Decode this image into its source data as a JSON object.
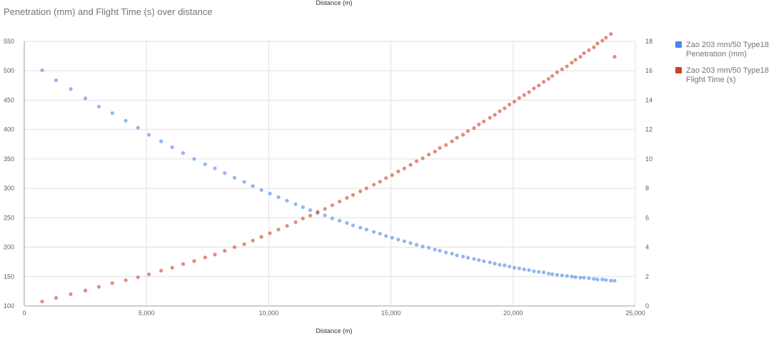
{
  "chart_data": {
    "type": "scatter",
    "title": "Penetration (mm) and Flight Time (s) over distance",
    "xlabel": "Distance (m)",
    "xlabel_top": "Distance (m)",
    "xlim": [
      0,
      25000
    ],
    "x_ticks": [
      0,
      5000,
      10000,
      15000,
      20000,
      25000
    ],
    "x_tick_labels": [
      "0",
      "5,000",
      "10,000",
      "15,000",
      "20,000",
      "25,000"
    ],
    "ylim_left": [
      100,
      550
    ],
    "y_ticks_left": [
      100,
      150,
      200,
      250,
      300,
      350,
      400,
      450,
      500,
      550
    ],
    "ylim_right": [
      0,
      18
    ],
    "y_ticks_right": [
      0,
      2,
      4,
      6,
      8,
      10,
      12,
      14,
      16,
      18
    ],
    "grid": true,
    "legend_position": "right",
    "x": [
      730,
      1300,
      1900,
      2500,
      3050,
      3600,
      4150,
      4650,
      5100,
      5600,
      6050,
      6500,
      6950,
      7400,
      7800,
      8200,
      8600,
      9000,
      9350,
      9700,
      10050,
      10400,
      10750,
      11100,
      11400,
      11700,
      12000,
      12300,
      12600,
      12900,
      13200,
      13450,
      13750,
      14000,
      14300,
      14550,
      14800,
      15050,
      15300,
      15550,
      15800,
      16050,
      16300,
      16550,
      16800,
      17000,
      17250,
      17500,
      17700,
      17950,
      18150,
      18400,
      18600,
      18800,
      19050,
      19250,
      19450,
      19650,
      19850,
      20050,
      20250,
      20450,
      20650,
      20850,
      21050,
      21250,
      21450,
      21600,
      21800,
      22000,
      22200,
      22400,
      22550,
      22750,
      22900,
      23100,
      23300,
      23450,
      23650,
      23800,
      24000,
      24150
    ],
    "series": [
      {
        "name": "Zao 203 mm/50 Type18 Penetration (mm)",
        "axis": "left",
        "color": "#4a86e8",
        "values": [
          501,
          484,
          469,
          453,
          439,
          428,
          415,
          403,
          391,
          380,
          370,
          360,
          350,
          341,
          334,
          326,
          318,
          311,
          304,
          297,
          291,
          285,
          279,
          273,
          268,
          263,
          258,
          254,
          249,
          245,
          241,
          237,
          233,
          230,
          226,
          223,
          219,
          216,
          213,
          210,
          207,
          204,
          201,
          199,
          196,
          194,
          191,
          189,
          186,
          184,
          182,
          180,
          178,
          176,
          174,
          172,
          170,
          169,
          167,
          165,
          164,
          162,
          161,
          159,
          158,
          157,
          155,
          154,
          153,
          152,
          151,
          150,
          149,
          148,
          148,
          147,
          146,
          145,
          145,
          144,
          143,
          143
        ]
      },
      {
        "name": "Zao 203 mm/50 Type18 Flight Time (s)",
        "axis": "right",
        "color": "#cc4125",
        "values": [
          0.3,
          0.55,
          0.8,
          1.05,
          1.3,
          1.55,
          1.75,
          1.95,
          2.15,
          2.4,
          2.6,
          2.85,
          3.05,
          3.3,
          3.5,
          3.75,
          4.0,
          4.2,
          4.45,
          4.7,
          4.95,
          5.2,
          5.45,
          5.7,
          5.95,
          6.15,
          6.4,
          6.6,
          6.85,
          7.1,
          7.35,
          7.55,
          7.8,
          8.0,
          8.25,
          8.45,
          8.7,
          8.9,
          9.15,
          9.35,
          9.6,
          9.85,
          10.05,
          10.3,
          10.5,
          10.75,
          10.95,
          11.2,
          11.45,
          11.65,
          11.9,
          12.1,
          12.35,
          12.55,
          12.8,
          13.0,
          13.25,
          13.45,
          13.7,
          13.9,
          14.15,
          14.35,
          14.55,
          14.8,
          15.0,
          15.25,
          15.45,
          15.65,
          15.9,
          16.1,
          16.3,
          16.55,
          16.75,
          16.95,
          17.2,
          17.4,
          17.6,
          17.85,
          18.05,
          18.25,
          18.5,
          16.95
        ]
      }
    ],
    "legend": [
      {
        "line1": "Zao 203 mm/50 Type18",
        "line2": "Penetration (mm)",
        "color": "#4a86e8"
      },
      {
        "line1": "Zao 203 mm/50 Type18",
        "line2": "Flight Time (s)",
        "color": "#cc4125"
      }
    ]
  }
}
